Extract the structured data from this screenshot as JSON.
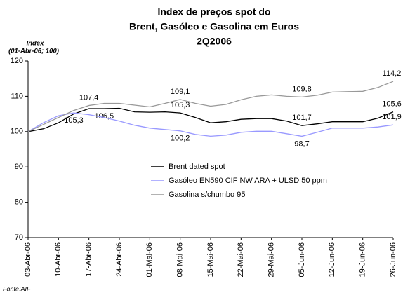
{
  "chart_data": {
    "type": "line",
    "title": [
      "Index de preços spot do",
      "Brent, Gasóleo e Gasolina em Euros",
      "2Q2006"
    ],
    "y_label": [
      "Index",
      "(01-Abr-06; 100)"
    ],
    "source": "Fonte:AIF",
    "categories": [
      "03-Abr-06",
      null,
      "10-Abr-06",
      null,
      "17-Abr-06",
      null,
      "24-Abr-06",
      null,
      "01-Mai-06",
      null,
      "08-Mai-06",
      null,
      "15-Mai-06",
      null,
      "22-Mai-06",
      null,
      "29-Mai-06",
      null,
      "05-Jun-06",
      null,
      "12-Jun-06",
      null,
      "19-Jun-06",
      null,
      "26-Jun-06"
    ],
    "series": [
      {
        "name": "Brent dated spot",
        "color": "#000000",
        "values": [
          100,
          100.8,
          102.5,
          105,
          106.5,
          106.5,
          106.6,
          105.6,
          105.5,
          105.6,
          105.3,
          104,
          102.5,
          102.8,
          103.5,
          103.7,
          103.7,
          103,
          101.7,
          102.2,
          102.8,
          102.8,
          102.8,
          103.8,
          105.6
        ],
        "value_labels": [
          null,
          null,
          null,
          null,
          null,
          "106,5",
          null,
          null,
          null,
          null,
          "105,3",
          null,
          null,
          null,
          null,
          null,
          null,
          null,
          "101,7",
          null,
          null,
          null,
          null,
          null,
          "105,6"
        ]
      },
      {
        "name": "Gasóleo EN590 CIF NW ARA + ULSD 50 ppm",
        "color": "#9999ff",
        "values": [
          100,
          102.5,
          104.5,
          105.3,
          104.8,
          104,
          103,
          101.8,
          101,
          100.6,
          100.2,
          99.2,
          98.7,
          99,
          99.8,
          100.1,
          100.1,
          99.4,
          98.7,
          99.8,
          101,
          101,
          101,
          101.3,
          101.9
        ],
        "value_labels": [
          null,
          null,
          null,
          "105,3",
          null,
          null,
          null,
          null,
          null,
          null,
          "100,2",
          null,
          null,
          null,
          null,
          null,
          null,
          null,
          "98,7",
          null,
          null,
          null,
          null,
          null,
          "101,9"
        ]
      },
      {
        "name": "Gasolina s/chumbo 95",
        "color": "#999999",
        "values": [
          100,
          102,
          104,
          106,
          107.4,
          108,
          108,
          107.5,
          107,
          108,
          109.1,
          108,
          107.2,
          107.7,
          109,
          110,
          110.4,
          110,
          109.8,
          110.3,
          111.2,
          111.3,
          111.4,
          112.5,
          114.2
        ],
        "value_labels": [
          null,
          null,
          null,
          null,
          "107,4",
          null,
          null,
          null,
          null,
          null,
          "109,1",
          null,
          null,
          null,
          null,
          null,
          null,
          null,
          "109,8",
          null,
          null,
          null,
          null,
          null,
          "114,2"
        ]
      }
    ],
    "ylim": [
      70,
      120
    ],
    "yticks": [
      70,
      80,
      90,
      100,
      110,
      120
    ],
    "grid": false
  }
}
